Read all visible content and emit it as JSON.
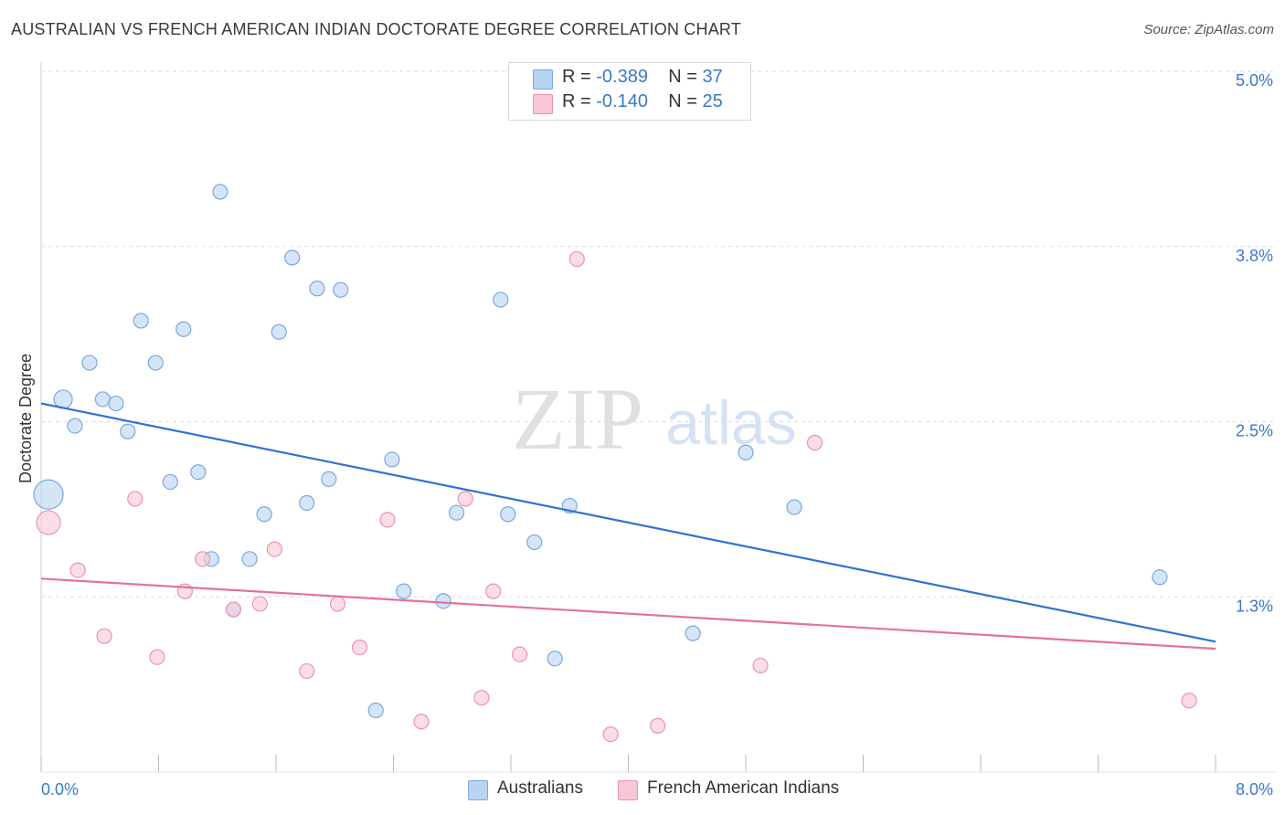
{
  "title": "AUSTRALIAN VS FRENCH AMERICAN INDIAN DOCTORATE DEGREE CORRELATION CHART",
  "source": "Source: ZipAtlas.com",
  "watermark": {
    "zip": "ZIP",
    "atlas": "atlas"
  },
  "legend_top": {
    "r_label": "R =",
    "n_label": "N =",
    "rows": [
      {
        "r": "-0.389",
        "n": "37"
      },
      {
        "r": "-0.140",
        "n": "25"
      }
    ]
  },
  "colors": {
    "blue_fill": "#b9d3f3",
    "blue_stroke": "#7aa7de",
    "blue_line": "#2f72d1",
    "pink_fill": "#f8c6d4",
    "pink_stroke": "#eb93ae",
    "pink_line": "#e3719a",
    "axis_text": "#3a78c9",
    "grid": "#dcdcdc"
  },
  "chart_data": {
    "type": "scatter",
    "title": "AUSTRALIAN VS FRENCH AMERICAN INDIAN DOCTORATE DEGREE CORRELATION CHART",
    "xlabel": "",
    "ylabel": "Doctorate Degree",
    "xlim": [
      0.0,
      8.0
    ],
    "ylim": [
      0.0,
      5.0
    ],
    "x_tick_labels": [
      "0.0%",
      "8.0%"
    ],
    "y_tick_labels": [
      "1.3%",
      "2.5%",
      "3.8%",
      "5.0%"
    ],
    "y_ticks": [
      1.25,
      2.5,
      3.75,
      5.0
    ],
    "grid": true,
    "legend_position": "bottom",
    "series": [
      {
        "name": "Australians",
        "color": "#b9d3f3",
        "points": [
          [
            0.15,
            2.66,
            10
          ],
          [
            0.23,
            2.47,
            8
          ],
          [
            0.33,
            2.92,
            8
          ],
          [
            0.42,
            2.66,
            8
          ],
          [
            0.51,
            2.63,
            8
          ],
          [
            0.59,
            2.43,
            8
          ],
          [
            0.68,
            3.22,
            8
          ],
          [
            0.78,
            2.92,
            8
          ],
          [
            0.88,
            2.07,
            8
          ],
          [
            0.97,
            3.16,
            8
          ],
          [
            1.07,
            2.14,
            8
          ],
          [
            1.16,
            1.52,
            8
          ],
          [
            1.22,
            4.14,
            8
          ],
          [
            1.31,
            1.16,
            8
          ],
          [
            1.42,
            1.52,
            8
          ],
          [
            1.52,
            1.84,
            8
          ],
          [
            1.62,
            3.14,
            8
          ],
          [
            1.71,
            3.67,
            8
          ],
          [
            1.81,
            1.92,
            8
          ],
          [
            1.88,
            3.45,
            8
          ],
          [
            1.96,
            2.09,
            8
          ],
          [
            2.04,
            3.44,
            8
          ],
          [
            2.28,
            0.44,
            8
          ],
          [
            2.39,
            2.23,
            8
          ],
          [
            2.47,
            1.29,
            8
          ],
          [
            2.74,
            1.22,
            8
          ],
          [
            2.83,
            1.85,
            8
          ],
          [
            3.13,
            3.37,
            8
          ],
          [
            3.18,
            1.84,
            8
          ],
          [
            3.36,
            1.64,
            8
          ],
          [
            3.5,
            0.81,
            8
          ],
          [
            3.6,
            1.9,
            8
          ],
          [
            4.44,
            0.99,
            8
          ],
          [
            4.8,
            2.28,
            8
          ],
          [
            5.13,
            1.89,
            8
          ],
          [
            7.62,
            1.39,
            8
          ],
          [
            0.05,
            1.98,
            16
          ]
        ]
      },
      {
        "name": "French American Indians",
        "color": "#f8c6d4",
        "points": [
          [
            0.05,
            1.78,
            13
          ],
          [
            0.25,
            1.44,
            8
          ],
          [
            0.43,
            0.97,
            8
          ],
          [
            0.64,
            1.95,
            8
          ],
          [
            0.79,
            0.82,
            8
          ],
          [
            0.98,
            1.29,
            8
          ],
          [
            1.1,
            1.52,
            8
          ],
          [
            1.31,
            1.16,
            8
          ],
          [
            1.49,
            1.2,
            8
          ],
          [
            1.59,
            1.59,
            8
          ],
          [
            1.81,
            0.72,
            8
          ],
          [
            2.02,
            1.2,
            8
          ],
          [
            2.17,
            0.89,
            8
          ],
          [
            2.36,
            1.8,
            8
          ],
          [
            2.59,
            0.36,
            8
          ],
          [
            2.89,
            1.95,
            8
          ],
          [
            3.0,
            0.53,
            8
          ],
          [
            3.08,
            1.29,
            8
          ],
          [
            3.26,
            0.84,
            8
          ],
          [
            3.65,
            3.66,
            8
          ],
          [
            3.88,
            0.27,
            8
          ],
          [
            4.2,
            0.33,
            8
          ],
          [
            4.9,
            0.76,
            8
          ],
          [
            5.27,
            2.35,
            8
          ],
          [
            7.82,
            0.51,
            8
          ]
        ]
      }
    ],
    "trend_lines": [
      {
        "series": "Australians",
        "x": [
          0.0,
          8.0
        ],
        "y": [
          2.63,
          0.93
        ]
      },
      {
        "series": "French American Indians",
        "x": [
          0.0,
          8.0
        ],
        "y": [
          1.38,
          0.88
        ]
      }
    ]
  },
  "bottom_legend": [
    {
      "label": "Australians"
    },
    {
      "label": "French American Indians"
    }
  ]
}
